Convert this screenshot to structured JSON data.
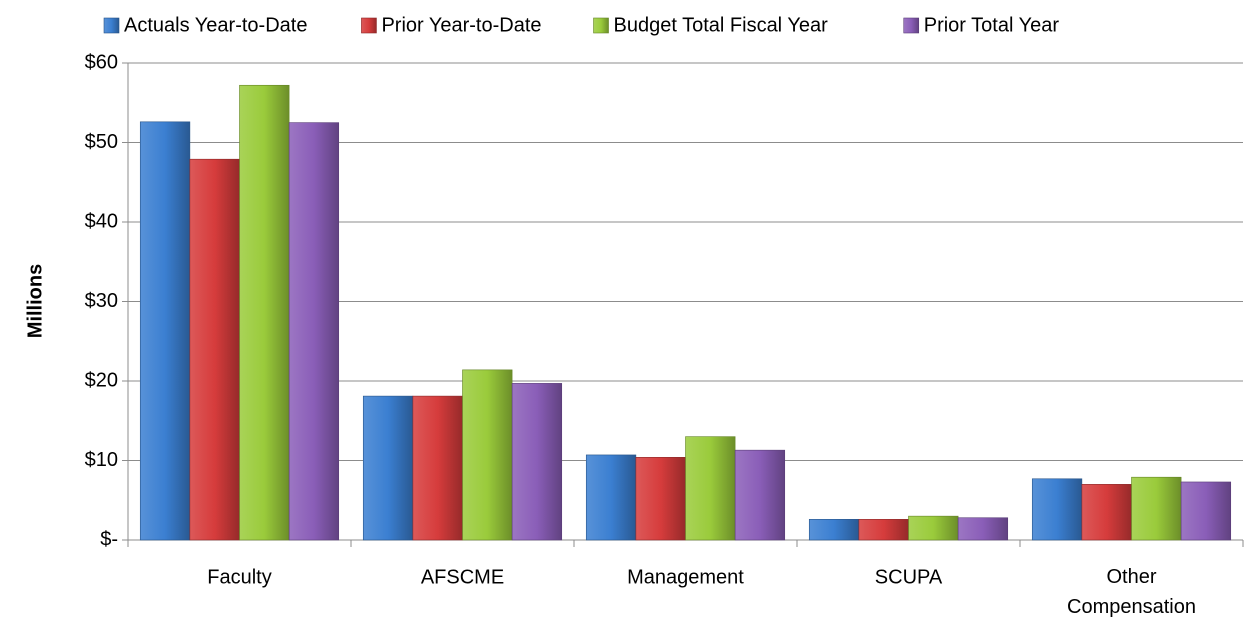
{
  "chart_data": {
    "type": "bar",
    "y_label": "Millions",
    "categories": [
      "Faculty",
      "AFSCME",
      "Management",
      "SCUPA",
      "Other Compensation"
    ],
    "series": [
      {
        "name": "Actuals Year-to-Date",
        "color": "#3b7fd1",
        "values": [
          52.6,
          18.1,
          10.7,
          2.6,
          7.7
        ]
      },
      {
        "name": "Prior Year-to-Date",
        "color": "#d63c3c",
        "values": [
          47.9,
          18.1,
          10.4,
          2.6,
          7.0
        ]
      },
      {
        "name": "Budget Total Fiscal Year",
        "color": "#9acb3b",
        "values": [
          57.2,
          21.4,
          13.0,
          3.0,
          7.9
        ]
      },
      {
        "name": "Prior Total Year",
        "color": "#8a5eb8",
        "values": [
          52.5,
          19.7,
          11.3,
          2.8,
          7.3
        ]
      }
    ],
    "ylim": [
      0,
      60
    ],
    "yticks": [
      {
        "value": 0,
        "label": "$-"
      },
      {
        "value": 10,
        "label": "$10"
      },
      {
        "value": 20,
        "label": "$20"
      },
      {
        "value": 30,
        "label": "$30"
      },
      {
        "value": 40,
        "label": "$40"
      },
      {
        "value": 50,
        "label": "$50"
      },
      {
        "value": 60,
        "label": "$60"
      }
    ],
    "grid": true,
    "legend": "top"
  }
}
